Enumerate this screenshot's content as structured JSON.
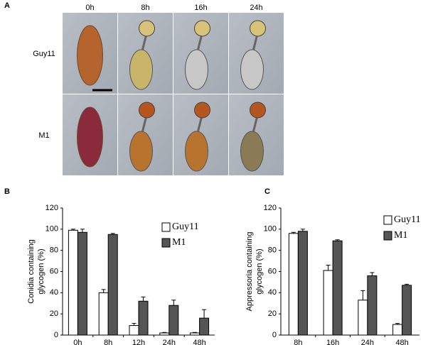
{
  "panel_a": {
    "label": "A",
    "columns": [
      "0h",
      "8h",
      "16h",
      "24h"
    ],
    "rows": [
      "Guy11",
      "M1"
    ]
  },
  "chart_data": [
    {
      "type": "bar",
      "panel": "B",
      "y_label": [
        "Conidia containing",
        "glycogen (%)"
      ],
      "categories": [
        "0h",
        "8h",
        "12h",
        "24h",
        "48h"
      ],
      "series": [
        {
          "name": "Guy11",
          "color": "#ffffff",
          "values": [
            99,
            40,
            9,
            2,
            2
          ],
          "errors": [
            1,
            3,
            2,
            0.5,
            0.5
          ]
        },
        {
          "name": "M1",
          "color": "#555555",
          "values": [
            97,
            95,
            32,
            28,
            16
          ],
          "errors": [
            3,
            1,
            4,
            5,
            8
          ]
        }
      ],
      "ylim": [
        0,
        120
      ],
      "yticks": [
        0,
        20,
        40,
        60,
        80,
        100,
        120
      ]
    },
    {
      "type": "bar",
      "panel": "C",
      "y_label": [
        "Appressoria containing",
        "glycogen (%)"
      ],
      "categories": [
        "8h",
        "16h",
        "24h",
        "48h"
      ],
      "series": [
        {
          "name": "Guy11",
          "color": "#ffffff",
          "values": [
            96,
            61,
            33,
            10
          ],
          "errors": [
            1,
            5,
            9,
            1
          ]
        },
        {
          "name": "M1",
          "color": "#555555",
          "values": [
            98,
            89,
            56,
            47
          ],
          "errors": [
            2,
            1,
            3,
            1
          ]
        }
      ],
      "ylim": [
        0,
        120
      ],
      "yticks": [
        0,
        20,
        40,
        60,
        80,
        100,
        120
      ]
    }
  ]
}
